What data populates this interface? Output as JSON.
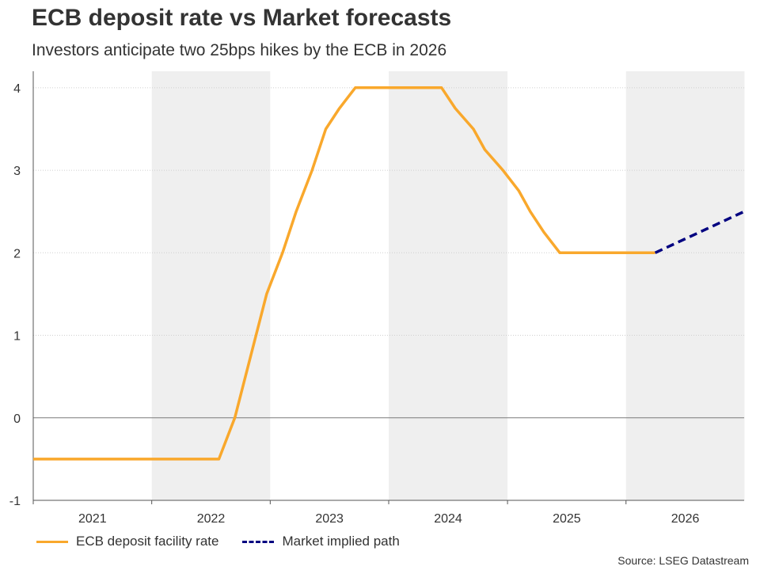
{
  "chart_data": {
    "type": "line",
    "title": "ECB deposit rate vs Market forecasts",
    "subtitle": "Investors anticipate two 25bps hikes by the ECB in 2026",
    "xlabel": "",
    "ylabel": "",
    "xlim": [
      "2021-01-01",
      "2026-12-31"
    ],
    "ylim": [
      -1,
      4.2
    ],
    "y_ticks": [
      -1,
      0,
      1,
      2,
      3,
      4
    ],
    "x_tick_labels": [
      "2021",
      "2022",
      "2023",
      "2024",
      "2025",
      "2026"
    ],
    "shaded_years": [
      "2022",
      "2024",
      "2026"
    ],
    "grid": "horizontal",
    "legend_position": "bottom-left",
    "series": [
      {
        "name": "ECB deposit facility rate",
        "color": "#f9a82c",
        "style": "solid",
        "points": [
          [
            "2021-01-01",
            -0.5
          ],
          [
            "2022-07-27",
            -0.5
          ],
          [
            "2022-09-14",
            0.0
          ],
          [
            "2022-11-02",
            0.75
          ],
          [
            "2022-12-21",
            1.5
          ],
          [
            "2023-02-08",
            2.0
          ],
          [
            "2023-03-22",
            2.5
          ],
          [
            "2023-05-10",
            3.0
          ],
          [
            "2023-06-21",
            3.5
          ],
          [
            "2023-08-02",
            3.75
          ],
          [
            "2023-09-20",
            4.0
          ],
          [
            "2024-06-12",
            4.0
          ],
          [
            "2024-07-24",
            3.75
          ],
          [
            "2024-09-18",
            3.5
          ],
          [
            "2024-10-23",
            3.25
          ],
          [
            "2024-12-18",
            3.0
          ],
          [
            "2025-02-05",
            2.75
          ],
          [
            "2025-03-12",
            2.5
          ],
          [
            "2025-04-23",
            2.25
          ],
          [
            "2025-06-11",
            2.0
          ],
          [
            "2026-04-01",
            2.0
          ]
        ]
      },
      {
        "name": "Market implied path",
        "color": "#000080",
        "style": "dashed",
        "points": [
          [
            "2026-04-01",
            2.0
          ],
          [
            "2026-12-31",
            2.5
          ]
        ]
      }
    ]
  },
  "source": "Source: LSEG Datastream"
}
